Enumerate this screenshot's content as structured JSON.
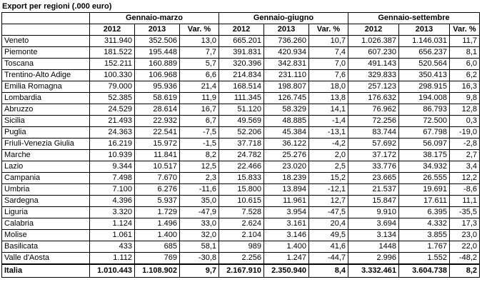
{
  "title": "Export per regioni (.000 euro)",
  "groups": [
    "Gennaio-marzo",
    "Gennaio-giugno",
    "Gennaio-settembre"
  ],
  "subheaders": [
    "2012",
    "2013",
    "Var. %"
  ],
  "rows": [
    {
      "region": "Veneto",
      "cells": [
        "311.940",
        "352.506",
        "13,0",
        "665.201",
        "736.260",
        "10,7",
        "1.026.387",
        "1.146.031",
        "11,7"
      ]
    },
    {
      "region": "Piemonte",
      "cells": [
        "181.522",
        "195.448",
        "7,7",
        "391.831",
        "420.934",
        "7,4",
        "607.230",
        "656.237",
        "8,1"
      ]
    },
    {
      "region": "Toscana",
      "cells": [
        "152.211",
        "160.889",
        "5,7",
        "320.396",
        "342.831",
        "7,0",
        "491.143",
        "520.564",
        "6,0"
      ]
    },
    {
      "region": "Trentino-Alto Adige",
      "cells": [
        "100.330",
        "106.968",
        "6,6",
        "214.834",
        "231.110",
        "7,6",
        "329.833",
        "350.413",
        "6,2"
      ]
    },
    {
      "region": "Emilia Romagna",
      "cells": [
        "79.000",
        "95.936",
        "21,4",
        "168.514",
        "198.807",
        "18,0",
        "257.123",
        "298.915",
        "16,3"
      ]
    },
    {
      "region": "Lombardia",
      "cells": [
        "52.385",
        "58.619",
        "11,9",
        "111.345",
        "126.745",
        "13,8",
        "176.632",
        "194.008",
        "9,8"
      ]
    },
    {
      "region": "Abruzzo",
      "cells": [
        "24.529",
        "28.614",
        "16,7",
        "51.120",
        "58.329",
        "14,1",
        "76.962",
        "86.793",
        "12,8"
      ]
    },
    {
      "region": "Sicilia",
      "cells": [
        "21.493",
        "22.932",
        "6,7",
        "49.569",
        "48.885",
        "-1,4",
        "72.256",
        "72.500",
        "0,3"
      ]
    },
    {
      "region": "Puglia",
      "cells": [
        "24.363",
        "22.541",
        "-7,5",
        "52.206",
        "45.384",
        "-13,1",
        "83.744",
        "67.798",
        "-19,0"
      ]
    },
    {
      "region": "Friuli-Venezia Giulia",
      "cells": [
        "16.219",
        "15.972",
        "-1,5",
        "37.718",
        "36.122",
        "-4,2",
        "57.692",
        "56.097",
        "-2,8"
      ]
    },
    {
      "region": "Marche",
      "cells": [
        "10.939",
        "11.841",
        "8,2",
        "24.782",
        "25.276",
        "2,0",
        "37.172",
        "38.175",
        "2,7"
      ]
    },
    {
      "region": "Lazio",
      "cells": [
        "9.344",
        "10.517",
        "12,5",
        "22.466",
        "23.020",
        "2,5",
        "33.776",
        "34.932",
        "3,4"
      ]
    },
    {
      "region": "Campania",
      "cells": [
        "7.498",
        "7.670",
        "2,3",
        "15.833",
        "18.239",
        "15,2",
        "23.665",
        "26.555",
        "12,2"
      ]
    },
    {
      "region": "Umbria",
      "cells": [
        "7.100",
        "6.276",
        "-11,6",
        "15.800",
        "13.894",
        "-12,1",
        "21.537",
        "19.691",
        "-8,6"
      ]
    },
    {
      "region": "Sardegna",
      "cells": [
        "4.396",
        "5.937",
        "35,0",
        "10.615",
        "11.961",
        "12,7",
        "15.847",
        "17.611",
        "11,1"
      ]
    },
    {
      "region": "Liguria",
      "cells": [
        "3.320",
        "1.729",
        "-47,9",
        "7.528",
        "3.954",
        "-47,5",
        "9.910",
        "6.395",
        "-35,5"
      ]
    },
    {
      "region": "Calabria",
      "cells": [
        "1.124",
        "1.496",
        "33,0",
        "2.624",
        "3.161",
        "20,4",
        "3.694",
        "4.332",
        "17,3"
      ]
    },
    {
      "region": "Molise",
      "cells": [
        "1.061",
        "1.400",
        "32,0",
        "2.104",
        "3.146",
        "49,5",
        "3.134",
        "3.855",
        "23,0"
      ]
    },
    {
      "region": "Basilicata",
      "cells": [
        "433",
        "685",
        "58,1",
        "989",
        "1.400",
        "41,6",
        "1448",
        "1.767",
        "22,0"
      ]
    },
    {
      "region": "Valle d'Aosta",
      "cells": [
        "1.112",
        "769",
        "-30,8",
        "2.256",
        "1.247",
        "-44,7",
        "2.996",
        "1.552",
        "-48,2"
      ]
    }
  ],
  "total": {
    "region": "Italia",
    "cells": [
      "1.010.443",
      "1.108.902",
      "9,7",
      "2.167.910",
      "2.350.940",
      "8,4",
      "3.332.461",
      "3.604.738",
      "8,2"
    ]
  }
}
